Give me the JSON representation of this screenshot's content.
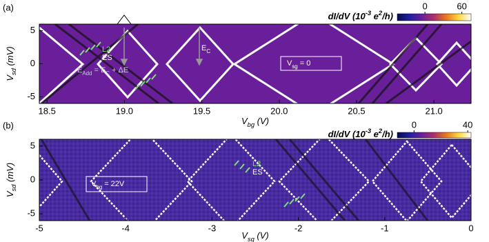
{
  "chart_data": [
    {
      "type": "heatmap",
      "panel_label": "(a)",
      "xlabel": [
        "V",
        "bg",
        " (V)"
      ],
      "ylabel": [
        "V",
        "sd",
        " (mV)"
      ],
      "xlim": [
        18.45,
        21.24
      ],
      "ylim": [
        -6,
        6
      ],
      "xticks": [
        18.5,
        {
          "value": 19,
          "label": "19.0"
        },
        19.5,
        {
          "value": 20,
          "label": "20.0"
        },
        20.5,
        {
          "value": 21,
          "label": "21.0"
        }
      ],
      "yticks": [
        5,
        0,
        -5
      ],
      "colorbar": {
        "label": [
          "dI/dV (10",
          "-3",
          " e",
          "2",
          "/h)"
        ],
        "lim": [
          -45,
          75
        ],
        "ticks": [
          0,
          60
        ],
        "colormap": [
          "#0a0a50",
          "#2020a0",
          "#6a1f9a",
          "#b0306a",
          "#e87a20",
          "#ffd840",
          "#ffffff"
        ]
      },
      "annotations": {
        "l2": "L2",
        "es": "ES",
        "e_add": [
          "E",
          "Add",
          " = E",
          "C",
          " + ΔE"
        ],
        "e_c": [
          "E",
          "C"
        ],
        "gate": [
          "V",
          "sg",
          " = 0"
        ]
      }
    },
    {
      "type": "heatmap",
      "panel_label": "(b)",
      "xlabel": [
        "V",
        "sg",
        " (V)"
      ],
      "ylabel": [
        "V",
        "sd",
        " (mV)"
      ],
      "xlim": [
        -5,
        0
      ],
      "ylim": [
        -6,
        6
      ],
      "xticks": [
        -5,
        -4,
        -3,
        -2,
        -1,
        0
      ],
      "yticks": [
        5,
        0,
        -5
      ],
      "colorbar": {
        "label": [
          "dI/dV (10",
          "-3",
          " e",
          "2",
          "/h)"
        ],
        "lim": [
          -12.5,
          42.5
        ],
        "ticks": [
          0,
          40
        ],
        "colormap": [
          "#0a0a50",
          "#2020a0",
          "#6a1f9a",
          "#b0306a",
          "#e87a20",
          "#ffd840",
          "#ffffff"
        ]
      },
      "annotations": {
        "l2": "L2",
        "es": "ES",
        "gate": [
          "V",
          "bg",
          " = 22V"
        ]
      }
    }
  ]
}
